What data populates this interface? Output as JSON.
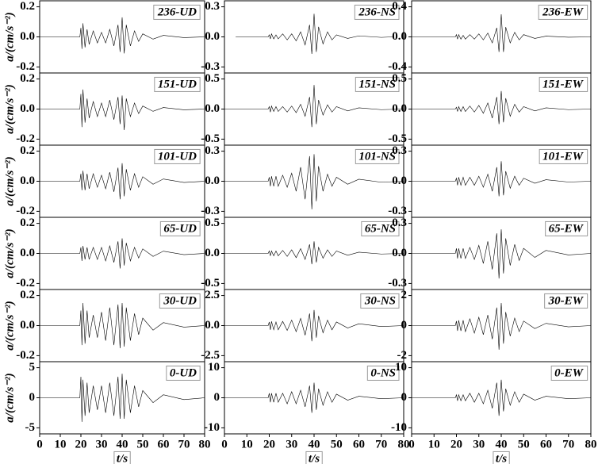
{
  "chart_data": [
    {
      "type": "line",
      "title": "236-UD",
      "ylabel": "a/(cm/s⁻²)",
      "color": "#000000",
      "xlim": [
        0,
        80
      ],
      "ylim": [
        -0.24,
        0.24
      ],
      "yticks": [
        0.2,
        {
          "value": 0,
          "label": "0.0"
        },
        -0.2
      ],
      "x": [
        0,
        19.5,
        20,
        20.5,
        21,
        22,
        23,
        24,
        26,
        28,
        30,
        32,
        34,
        36,
        38,
        39,
        40,
        41,
        42,
        44,
        46,
        48,
        50,
        55,
        60,
        70,
        80
      ],
      "values": [
        0,
        0,
        0.06,
        -0.08,
        0.09,
        -0.07,
        0.05,
        -0.05,
        0.04,
        -0.04,
        0.03,
        -0.04,
        0.05,
        -0.06,
        0.08,
        -0.1,
        0.13,
        -0.11,
        0.08,
        -0.06,
        0.04,
        -0.03,
        0.02,
        -0.015,
        0.01,
        -0.005,
        0
      ]
    },
    {
      "type": "line",
      "title": "236-NS",
      "color": "#000000",
      "xlim": [
        0,
        80
      ],
      "ylim": [
        -0.36,
        0.36
      ],
      "yticks": [
        0.3,
        {
          "value": 0,
          "label": "0.0"
        },
        -0.3
      ],
      "x": [
        5,
        19.5,
        20,
        20.5,
        21,
        22,
        23,
        24,
        26,
        28,
        30,
        32,
        34,
        36,
        38,
        39,
        40,
        41,
        42,
        44,
        46,
        48,
        50,
        55,
        60,
        70,
        75
      ],
      "values": [
        0,
        0,
        0.02,
        -0.02,
        0.03,
        -0.02,
        0.02,
        -0.02,
        0.03,
        -0.03,
        0.03,
        -0.04,
        0.05,
        -0.08,
        0.12,
        -0.17,
        0.23,
        -0.15,
        0.1,
        -0.07,
        0.05,
        -0.03,
        0.02,
        -0.015,
        0.01,
        -0.005,
        0
      ]
    },
    {
      "type": "line",
      "title": "236-EW",
      "color": "#000000",
      "xlim": [
        0,
        80
      ],
      "ylim": [
        -0.48,
        0.48
      ],
      "yticks": [
        0.4,
        {
          "value": 0,
          "label": "0.0"
        },
        -0.4
      ],
      "x": [
        0,
        19.5,
        20,
        20.5,
        21,
        22,
        23,
        24,
        26,
        28,
        30,
        32,
        34,
        36,
        38,
        39,
        40,
        41,
        42,
        44,
        46,
        48,
        50,
        55,
        60,
        70,
        80
      ],
      "values": [
        0,
        0,
        0.03,
        -0.03,
        0.03,
        -0.03,
        0.02,
        -0.03,
        0.03,
        -0.03,
        0.04,
        -0.04,
        0.05,
        -0.08,
        0.12,
        -0.2,
        0.3,
        -0.2,
        0.13,
        -0.08,
        0.06,
        -0.04,
        0.03,
        -0.02,
        0.01,
        -0.005,
        0
      ]
    },
    {
      "type": "line",
      "title": "151-UD",
      "ylabel": "a/(cm/s⁻²)",
      "color": "#000000",
      "xlim": [
        0,
        80
      ],
      "ylim": [
        -0.24,
        0.24
      ],
      "yticks": [
        0.2,
        {
          "value": 0,
          "label": "0.0"
        },
        -0.2
      ],
      "x": [
        0,
        19.5,
        20,
        20.5,
        21,
        22,
        23,
        24,
        26,
        28,
        30,
        32,
        34,
        36,
        38,
        39,
        40,
        41,
        42,
        44,
        46,
        48,
        50,
        55,
        60,
        70,
        80
      ],
      "values": [
        0,
        0,
        0.1,
        -0.12,
        0.13,
        -0.09,
        0.07,
        -0.06,
        0.05,
        -0.05,
        0.04,
        -0.05,
        0.06,
        -0.07,
        0.08,
        -0.1,
        0.09,
        -0.14,
        0.07,
        -0.05,
        0.04,
        -0.03,
        0.02,
        -0.015,
        0.01,
        -0.005,
        0
      ]
    },
    {
      "type": "line",
      "title": "151-NS",
      "color": "#000000",
      "xlim": [
        0,
        80
      ],
      "ylim": [
        -0.6,
        0.6
      ],
      "yticks": [
        0.5,
        {
          "value": 0,
          "label": "0.0"
        },
        -0.5
      ],
      "x": [
        0,
        19.5,
        20,
        20.5,
        21,
        22,
        23,
        24,
        26,
        28,
        30,
        32,
        34,
        36,
        38,
        39,
        40,
        41,
        42,
        44,
        46,
        48,
        50,
        55,
        60,
        70,
        80
      ],
      "values": [
        0,
        0,
        0.04,
        -0.05,
        0.05,
        -0.04,
        0.04,
        -0.04,
        0.04,
        -0.05,
        0.05,
        -0.06,
        0.08,
        -0.12,
        0.2,
        -0.3,
        0.4,
        -0.25,
        0.15,
        -0.1,
        0.07,
        -0.05,
        0.04,
        -0.03,
        0.02,
        -0.01,
        0
      ]
    },
    {
      "type": "line",
      "title": "151-EW",
      "color": "#000000",
      "xlim": [
        0,
        80
      ],
      "ylim": [
        -0.6,
        0.6
      ],
      "yticks": [
        0.5,
        {
          "value": 0,
          "label": "0.0"
        },
        -0.5
      ],
      "x": [
        0,
        19.5,
        20,
        20.5,
        21,
        22,
        23,
        24,
        26,
        28,
        30,
        32,
        34,
        36,
        38,
        39,
        40,
        41,
        42,
        44,
        46,
        48,
        50,
        55,
        60,
        70,
        80
      ],
      "values": [
        0,
        0,
        0.03,
        -0.04,
        0.04,
        -0.04,
        0.04,
        -0.04,
        0.05,
        -0.05,
        0.06,
        -0.07,
        0.1,
        -0.15,
        0.2,
        -0.25,
        0.3,
        -0.22,
        0.18,
        -0.12,
        0.08,
        -0.05,
        0.04,
        -0.03,
        0.02,
        -0.01,
        0
      ]
    },
    {
      "type": "line",
      "title": "101-UD",
      "ylabel": "a/(cm/s⁻²)",
      "color": "#000000",
      "xlim": [
        0,
        80
      ],
      "ylim": [
        -0.24,
        0.24
      ],
      "yticks": [
        0.2,
        {
          "value": 0,
          "label": "0.0"
        },
        -0.2
      ],
      "x": [
        0,
        19.5,
        20,
        20.5,
        21,
        22,
        23,
        24,
        26,
        28,
        30,
        32,
        34,
        36,
        38,
        39,
        40,
        41,
        42,
        44,
        46,
        48,
        50,
        55,
        60,
        70,
        80
      ],
      "values": [
        0,
        0,
        0.05,
        -0.06,
        0.07,
        -0.06,
        0.05,
        -0.05,
        0.05,
        -0.04,
        0.04,
        -0.05,
        0.06,
        -0.07,
        0.09,
        -0.12,
        0.12,
        -0.1,
        0.08,
        -0.06,
        0.05,
        -0.04,
        0.03,
        -0.02,
        0.015,
        -0.008,
        0
      ]
    },
    {
      "type": "line",
      "title": "101-NS",
      "color": "#000000",
      "xlim": [
        0,
        80
      ],
      "ylim": [
        -0.36,
        0.36
      ],
      "yticks": [
        0.3,
        {
          "value": 0,
          "label": "0.0"
        },
        -0.3
      ],
      "x": [
        0,
        19.5,
        20,
        20.5,
        21,
        22,
        23,
        24,
        26,
        28,
        30,
        32,
        34,
        36,
        38,
        39,
        40,
        41,
        42,
        44,
        46,
        48,
        50,
        55,
        60,
        70,
        80
      ],
      "values": [
        0,
        0,
        0.04,
        -0.05,
        0.05,
        -0.05,
        0.05,
        -0.05,
        0.06,
        -0.06,
        0.08,
        -0.1,
        0.14,
        -0.18,
        0.25,
        -0.28,
        0.27,
        -0.2,
        0.15,
        -0.1,
        0.07,
        -0.05,
        0.04,
        -0.03,
        0.02,
        -0.01,
        0
      ]
    },
    {
      "type": "line",
      "title": "101-EW",
      "color": "#000000",
      "xlim": [
        0,
        80
      ],
      "ylim": [
        -0.36,
        0.36
      ],
      "yticks": [
        0.3,
        {
          "value": 0,
          "label": "0.0"
        },
        -0.3
      ],
      "x": [
        0,
        19.5,
        20,
        20.5,
        21,
        22,
        23,
        24,
        26,
        28,
        30,
        32,
        34,
        36,
        38,
        39,
        40,
        41,
        42,
        44,
        46,
        48,
        50,
        55,
        60,
        70,
        80
      ],
      "values": [
        0,
        0,
        0.03,
        -0.04,
        0.04,
        -0.04,
        0.04,
        -0.04,
        0.04,
        -0.04,
        0.05,
        -0.06,
        0.07,
        -0.1,
        0.14,
        -0.15,
        0.2,
        -0.14,
        0.1,
        -0.07,
        0.05,
        -0.04,
        0.03,
        -0.02,
        0.015,
        -0.008,
        0
      ]
    },
    {
      "type": "line",
      "title": "65-UD",
      "ylabel": "a/(cm/s⁻²)",
      "color": "#000000",
      "xlim": [
        0,
        80
      ],
      "ylim": [
        -0.24,
        0.24
      ],
      "yticks": [
        0.2,
        {
          "value": 0,
          "label": "0.0"
        },
        -0.2
      ],
      "x": [
        0,
        19.5,
        20,
        20.5,
        21,
        22,
        23,
        24,
        26,
        28,
        30,
        32,
        34,
        36,
        38,
        39,
        40,
        41,
        42,
        44,
        46,
        48,
        50,
        55,
        60,
        70,
        80
      ],
      "values": [
        0,
        0,
        0.04,
        -0.05,
        0.05,
        -0.04,
        0.04,
        -0.04,
        0.04,
        -0.04,
        0.04,
        -0.05,
        0.05,
        -0.06,
        0.08,
        -0.1,
        0.1,
        -0.08,
        0.07,
        -0.05,
        0.04,
        -0.03,
        0.03,
        -0.02,
        0.015,
        -0.008,
        0
      ]
    },
    {
      "type": "line",
      "title": "65-NS",
      "color": "#000000",
      "xlim": [
        0,
        80
      ],
      "ylim": [
        -0.6,
        0.6
      ],
      "yticks": [
        0.5,
        {
          "value": 0,
          "label": "0.0"
        },
        -0.5
      ],
      "x": [
        0,
        19.5,
        20,
        20.5,
        21,
        22,
        23,
        24,
        26,
        28,
        30,
        32,
        34,
        36,
        38,
        39,
        40,
        41,
        42,
        44,
        46,
        48,
        50,
        55,
        60,
        70,
        80
      ],
      "values": [
        0,
        0,
        0.04,
        -0.04,
        0.04,
        -0.04,
        0.04,
        -0.04,
        0.05,
        -0.05,
        0.06,
        -0.07,
        0.08,
        -0.1,
        0.15,
        -0.18,
        0.2,
        -0.15,
        0.1,
        -0.08,
        0.06,
        -0.05,
        0.04,
        -0.03,
        0.02,
        -0.01,
        0
      ]
    },
    {
      "type": "line",
      "title": "65-EW",
      "color": "#000000",
      "xlim": [
        0,
        80
      ],
      "ylim": [
        -0.36,
        0.36
      ],
      "yticks": [
        0.3,
        {
          "value": 0,
          "label": "0.0"
        },
        -0.3
      ],
      "x": [
        0,
        19.5,
        20,
        20.5,
        21,
        22,
        23,
        24,
        26,
        28,
        30,
        32,
        34,
        36,
        38,
        39,
        40,
        41,
        42,
        44,
        46,
        48,
        50,
        55,
        60,
        70,
        80
      ],
      "values": [
        0,
        0,
        0.05,
        -0.05,
        0.05,
        -0.05,
        0.05,
        -0.05,
        0.06,
        -0.06,
        0.08,
        -0.1,
        0.12,
        -0.16,
        0.2,
        -0.25,
        0.24,
        -0.2,
        0.15,
        -0.12,
        0.09,
        -0.07,
        0.05,
        -0.04,
        0.03,
        -0.015,
        0
      ]
    },
    {
      "type": "line",
      "title": "30-UD",
      "ylabel": "a/(cm/s⁻²)",
      "color": "#000000",
      "xlim": [
        0,
        80
      ],
      "ylim": [
        -0.24,
        0.24
      ],
      "yticks": [
        0.2,
        {
          "value": 0,
          "label": "0.0"
        },
        -0.2
      ],
      "x": [
        0,
        19.5,
        20,
        20.5,
        21,
        22,
        23,
        24,
        26,
        28,
        30,
        32,
        34,
        36,
        38,
        39,
        40,
        41,
        42,
        44,
        46,
        48,
        50,
        55,
        60,
        70,
        80
      ],
      "values": [
        0,
        0,
        0.1,
        -0.13,
        0.15,
        -0.12,
        0.1,
        -0.08,
        0.07,
        -0.08,
        0.09,
        -0.1,
        0.12,
        -0.13,
        0.14,
        -0.15,
        0.15,
        -0.14,
        0.12,
        -0.1,
        0.08,
        -0.06,
        0.05,
        -0.03,
        0.02,
        -0.01,
        0
      ]
    },
    {
      "type": "line",
      "title": "30-NS",
      "color": "#000000",
      "xlim": [
        0,
        80
      ],
      "ylim": [
        -3,
        3
      ],
      "yticks": [
        2.5,
        {
          "value": 0,
          "label": "0.0"
        },
        -2.5
      ],
      "x": [
        0,
        19.5,
        20,
        20.5,
        21,
        22,
        23,
        24,
        26,
        28,
        30,
        32,
        34,
        36,
        38,
        39,
        40,
        41,
        42,
        44,
        46,
        48,
        50,
        55,
        60,
        70,
        80
      ],
      "values": [
        0,
        0,
        0.3,
        -0.35,
        0.35,
        -0.35,
        0.3,
        -0.35,
        0.35,
        -0.4,
        0.45,
        -0.5,
        0.6,
        -0.8,
        1.0,
        -1.3,
        1.3,
        -1.0,
        0.8,
        -0.6,
        0.45,
        -0.35,
        0.3,
        -0.2,
        0.15,
        -0.08,
        0
      ]
    },
    {
      "type": "line",
      "title": "30-EW",
      "color": "#000000",
      "xlim": [
        0,
        80
      ],
      "ylim": [
        -2.4,
        2.4
      ],
      "yticks": [
        2,
        0,
        -2
      ],
      "x": [
        0,
        19.5,
        20,
        20.5,
        21,
        22,
        23,
        24,
        26,
        28,
        30,
        32,
        34,
        36,
        38,
        39,
        40,
        41,
        42,
        44,
        46,
        48,
        50,
        55,
        60,
        70,
        80
      ],
      "values": [
        0,
        0,
        0.3,
        -0.35,
        0.35,
        -0.35,
        0.35,
        -0.4,
        0.45,
        -0.5,
        0.55,
        -0.6,
        0.7,
        -0.9,
        1.2,
        -1.6,
        1.5,
        -1.2,
        0.9,
        -0.7,
        0.5,
        -0.4,
        0.3,
        -0.2,
        0.15,
        -0.08,
        0
      ]
    },
    {
      "type": "line",
      "title": "0-UD",
      "ylabel": "a/(cm/s⁻²)",
      "xlabel": "t/s",
      "color": "#000000",
      "xlim": [
        0,
        80
      ],
      "xticks": [
        0,
        10,
        20,
        30,
        40,
        50,
        60,
        70,
        80
      ],
      "ylim": [
        -6,
        6
      ],
      "yticks": [
        5,
        0,
        -5
      ],
      "x": [
        0,
        19.5,
        20,
        20.5,
        21,
        22,
        23,
        24,
        26,
        28,
        30,
        32,
        34,
        36,
        38,
        39,
        40,
        41,
        42,
        44,
        46,
        48,
        50,
        55,
        60,
        70,
        80
      ],
      "values": [
        0,
        0,
        3.5,
        -4,
        3,
        -3,
        2.5,
        -2.5,
        2,
        -2,
        2,
        -2.5,
        2.5,
        -3,
        3.5,
        -3.5,
        4,
        -3.5,
        3,
        -2.5,
        2,
        -1.5,
        1.2,
        -0.8,
        0.5,
        -0.3,
        0
      ]
    },
    {
      "type": "line",
      "title": "0-NS",
      "xlabel": "t/s",
      "color": "#000000",
      "xlim": [
        0,
        80
      ],
      "xticks": [
        0,
        10,
        20,
        30,
        40,
        50,
        60,
        70,
        80
      ],
      "ylim": [
        -12,
        12
      ],
      "yticks": [
        10,
        0,
        -10
      ],
      "x": [
        0,
        19.5,
        20,
        20.5,
        21,
        22,
        23,
        24,
        26,
        28,
        30,
        32,
        34,
        36,
        38,
        39,
        40,
        41,
        42,
        44,
        46,
        48,
        50,
        55,
        60,
        70,
        80
      ],
      "values": [
        0,
        0,
        1.5,
        -1.5,
        1.5,
        -1.5,
        1.5,
        -1.5,
        1.5,
        -2,
        2,
        -2,
        2.5,
        -3,
        4,
        -5,
        5,
        -4,
        3,
        -2.5,
        2,
        -1.5,
        1.2,
        -0.8,
        0.5,
        -0.3,
        0
      ]
    },
    {
      "type": "line",
      "title": "0-EW",
      "xlabel": "t/s",
      "color": "#000000",
      "xlim": [
        0,
        80
      ],
      "xticks": [
        0,
        10,
        20,
        30,
        40,
        50,
        60,
        70,
        80
      ],
      "ylim": [
        -12,
        12
      ],
      "yticks": [
        10,
        0,
        -10
      ],
      "x": [
        0,
        19.5,
        20,
        20.5,
        21,
        22,
        23,
        24,
        26,
        28,
        30,
        32,
        34,
        36,
        38,
        39,
        40,
        41,
        42,
        44,
        46,
        48,
        50,
        55,
        60,
        70,
        80
      ],
      "values": [
        0,
        0,
        1,
        -1,
        1,
        -1,
        1,
        -1,
        1.5,
        -1.5,
        1.5,
        -2,
        2.5,
        -3.5,
        5,
        -6,
        6,
        -4.5,
        3,
        -2.5,
        2,
        -1.5,
        1.2,
        -0.8,
        0.5,
        -0.3,
        0
      ]
    }
  ]
}
